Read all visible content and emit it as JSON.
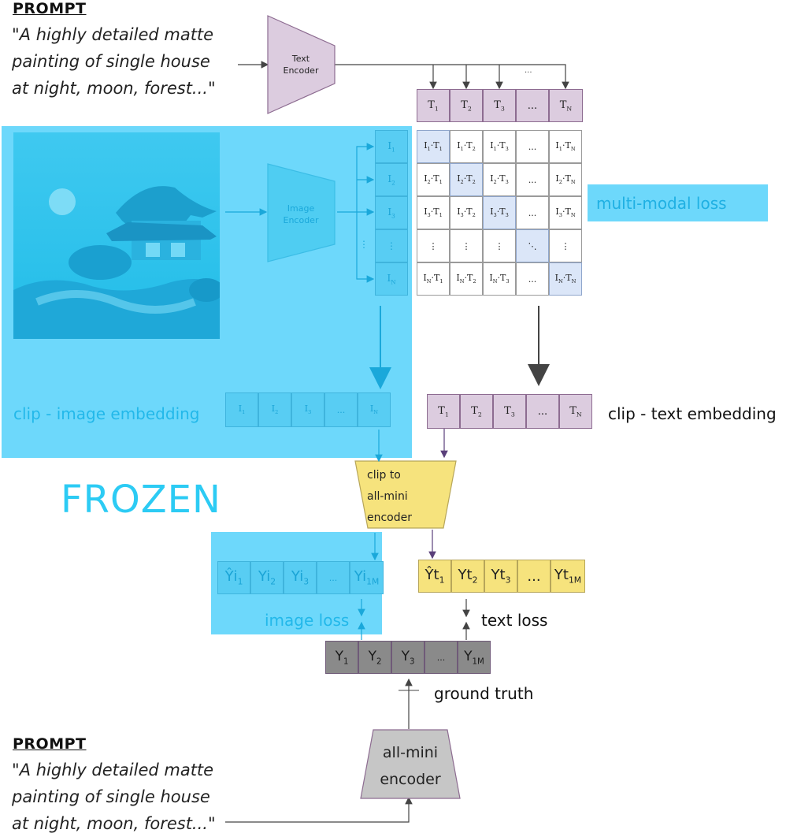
{
  "prompt_top": {
    "title": "PROMPT",
    "text": "\"A highly detailed matte\npainting of single house\nat night, moon, forest...\""
  },
  "prompt_bottom": {
    "title": "PROMPT",
    "text": "\"A highly detailed matte\npainting of single house\nat night, moon, forest...\""
  },
  "text_encoder": {
    "label": "Text\nEncoder"
  },
  "image_encoder": {
    "label": "Image\nEncoder"
  },
  "text_tokens": [
    "T1",
    "T2",
    "T3",
    "...",
    "TN"
  ],
  "top_dots": "...",
  "image_tokens": [
    "I1",
    "I2",
    "I3",
    "⋮",
    "IN"
  ],
  "side_dots": "⋮",
  "similarity_matrix": [
    [
      "I1·T1",
      "I1·T2",
      "I1·T3",
      "...",
      "I1·TN"
    ],
    [
      "I2·T1",
      "I2·T2",
      "I2·T3",
      "...",
      "I2·TN"
    ],
    [
      "I3·T1",
      "I3·T2",
      "I3·T3",
      "...",
      "I3·TN"
    ],
    [
      "⋮",
      "⋮",
      "⋮",
      "⋱",
      "⋮"
    ],
    [
      "IN·T1",
      "IN·T2",
      "IN·T3",
      "...",
      "IN·TN"
    ]
  ],
  "multimodal_loss": "multi-modal loss",
  "clip_image_embedding": {
    "label": "clip - image embedding",
    "tokens": [
      "I1",
      "I2",
      "I3",
      "...",
      "IN"
    ]
  },
  "clip_text_embedding": {
    "label": "clip - text embedding",
    "tokens": [
      "T1",
      "T2",
      "T3",
      "...",
      "TN"
    ]
  },
  "frozen": "FROZEN",
  "clip_to_allmini": {
    "label": "clip to\nall-mini\nencoder"
  },
  "image_pred": [
    "Ŷi1",
    "Yi2",
    "Yi3",
    "...",
    "Yi1M"
  ],
  "text_pred": [
    "Ŷt1",
    "Yt2",
    "Yt3",
    "...",
    "Yt1M"
  ],
  "image_loss": "image loss",
  "text_loss": "text loss",
  "ground_truth": {
    "label": "ground truth",
    "tokens": [
      "Y1",
      "Y2",
      "Y3",
      "...",
      "Y1M"
    ]
  },
  "allmini_encoder": {
    "label": "all-mini\nencoder"
  },
  "colors": {
    "purple": "#dcccdf",
    "yellow": "#f6e37d",
    "gray": "#8a8a8a",
    "frozen_blue": "#6dd8fb",
    "diag_blue": "#dbe6f8"
  }
}
